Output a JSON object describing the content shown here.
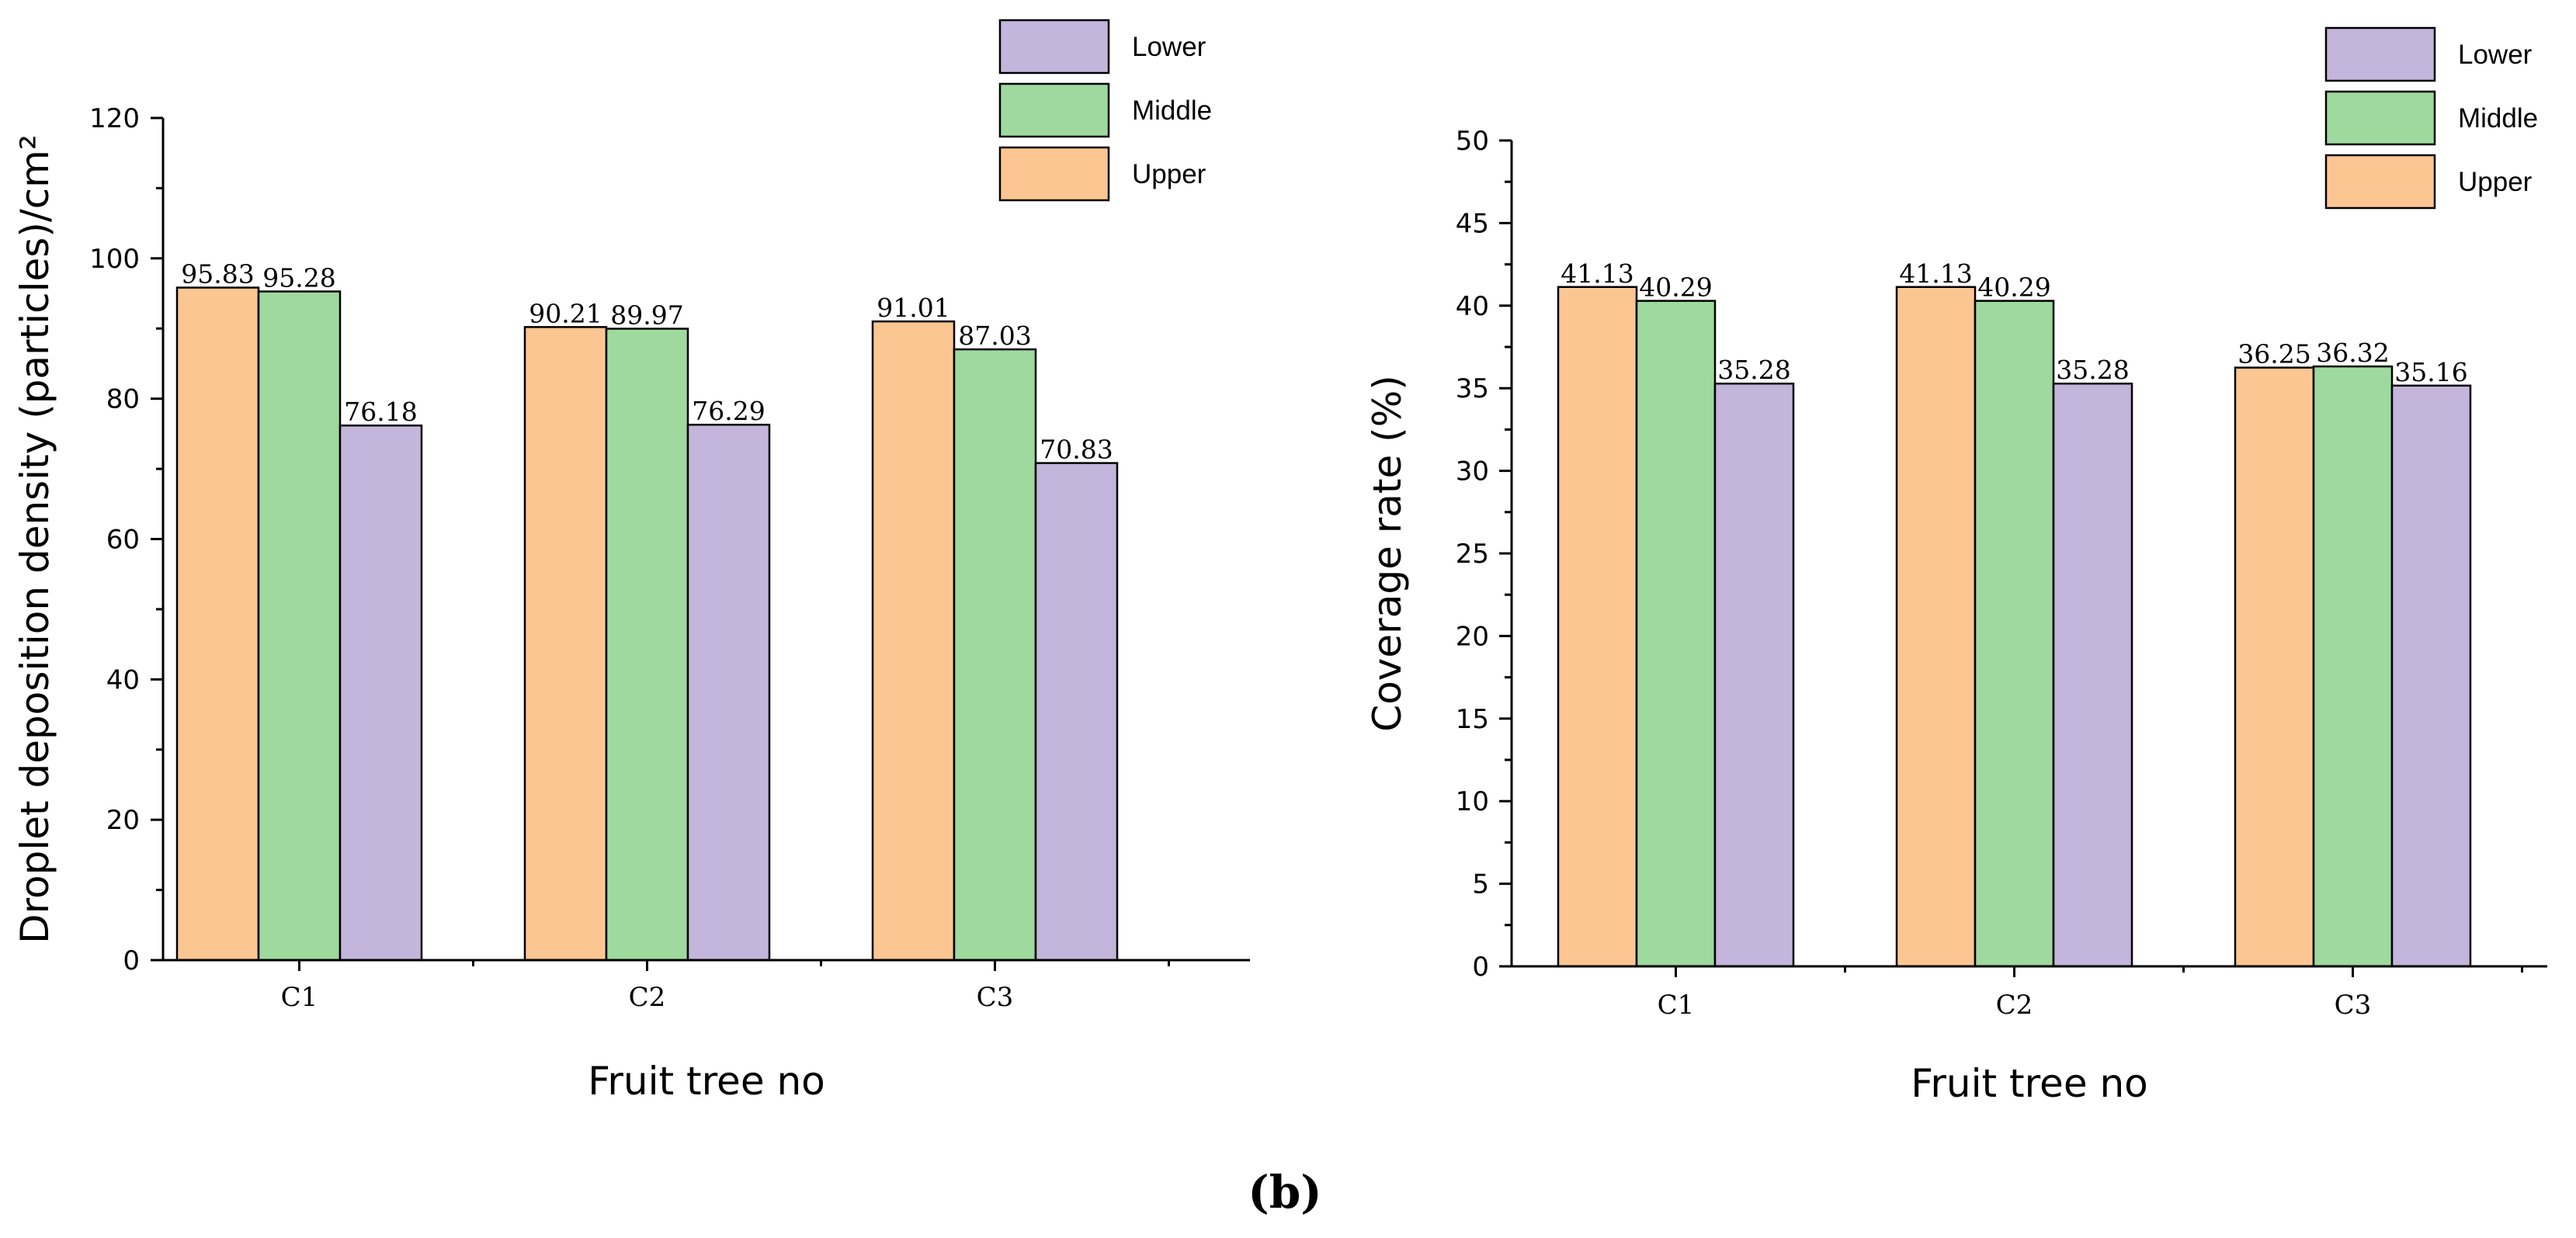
{
  "panel_label": "(b)",
  "colors": {
    "Upper": "#fcc692",
    "Middle": "#9ed99e",
    "Lower": "#c4b5dc"
  },
  "chart_data": [
    {
      "type": "bar",
      "title": "",
      "categories": [
        "C1",
        "C2",
        "C3"
      ],
      "series": [
        {
          "name": "Upper",
          "values": [
            95.83,
            90.21,
            91.01
          ],
          "labels": [
            "95.83",
            "90.21",
            "91.01"
          ]
        },
        {
          "name": "Middle",
          "values": [
            95.28,
            89.97,
            87.03
          ],
          "labels": [
            "95.28",
            "89.97",
            "87.03"
          ]
        },
        {
          "name": "Lower",
          "values": [
            76.18,
            76.29,
            70.83
          ],
          "labels": [
            "76.18",
            "76.29",
            "70.83"
          ]
        }
      ],
      "legend_order": [
        "Lower",
        "Middle",
        "Upper"
      ],
      "xlabel": "Fruit tree no",
      "ylabel": "Droplet deposition density (particles)/cm²",
      "ylim": [
        0,
        120
      ],
      "yticks": [
        "0",
        "20",
        "40",
        "60",
        "80",
        "100",
        "120"
      ],
      "legend_position": "top-right",
      "grid": false
    },
    {
      "type": "bar",
      "title": "",
      "categories": [
        "C1",
        "C2",
        "C3"
      ],
      "series": [
        {
          "name": "Upper",
          "values": [
            41.13,
            41.13,
            36.25
          ],
          "labels": [
            "41.13",
            "41.13",
            "36.25"
          ]
        },
        {
          "name": "Middle",
          "values": [
            40.29,
            40.29,
            36.32
          ],
          "labels": [
            "40.29",
            "40.29",
            "36.32"
          ]
        },
        {
          "name": "Lower",
          "values": [
            35.28,
            35.28,
            35.16
          ],
          "labels": [
            "35.28",
            "35.28",
            "35.16"
          ]
        }
      ],
      "legend_order": [
        "Lower",
        "Middle",
        "Upper"
      ],
      "xlabel": "Fruit tree no",
      "ylabel": "Coverage rate (%)",
      "ylim": [
        0,
        50
      ],
      "yticks": [
        "0",
        "5",
        "10",
        "15",
        "20",
        "25",
        "30",
        "35",
        "40",
        "45",
        "50"
      ],
      "legend_position": "top-right",
      "grid": false
    }
  ]
}
